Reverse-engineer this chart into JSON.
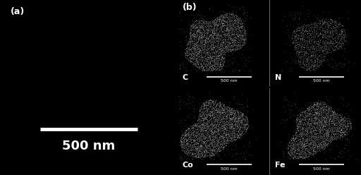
{
  "bg_color": "#000000",
  "fg_color": "#ffffff",
  "panel_a_label": "(a)",
  "panel_b_label": "(b)",
  "scalebar_text_large": "500 nm",
  "scalebar_text_small": "500 nm",
  "element_labels": [
    "C",
    "N",
    "Co",
    "Fe"
  ],
  "label_fontsize_large": 13,
  "label_fontsize_panel": 9,
  "label_fontsize_elem": 8,
  "label_fontsize_scale": 4.5,
  "fig_width": 5.12,
  "fig_height": 2.48,
  "dpi": 100,
  "seeds": [
    42,
    7,
    99,
    123
  ],
  "densities": [
    0.8,
    0.45,
    0.88,
    0.8
  ],
  "n_dots_base": 2200
}
